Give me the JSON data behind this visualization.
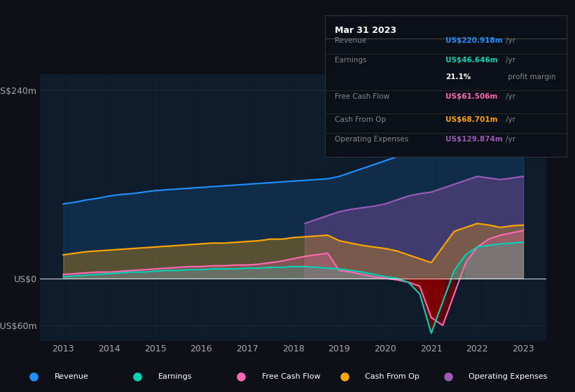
{
  "bg_color": "#0d1117",
  "plot_bg_color": "#0d1b2a",
  "grid_color": "#1e2d3d",
  "title_box": {
    "date": "Mar 31 2023",
    "rows": [
      {
        "label": "Revenue",
        "value": "US$220.918m",
        "unit": "/yr",
        "color": "#1e90ff"
      },
      {
        "label": "Earnings",
        "value": "US$46.646m",
        "unit": "/yr",
        "color": "#00d4b4"
      },
      {
        "label": "",
        "value": "21.1%",
        "unit": " profit margin",
        "color": "#ffffff"
      },
      {
        "label": "Free Cash Flow",
        "value": "US$61.506m",
        "unit": "/yr",
        "color": "#ff69b4"
      },
      {
        "label": "Cash From Op",
        "value": "US$68.701m",
        "unit": "/yr",
        "color": "#ffa500"
      },
      {
        "label": "Operating Expenses",
        "value": "US$129.874m",
        "unit": "/yr",
        "color": "#9b59b6"
      }
    ]
  },
  "years": [
    2013,
    2013.25,
    2013.5,
    2013.75,
    2014,
    2014.25,
    2014.5,
    2014.75,
    2015,
    2015.25,
    2015.5,
    2015.75,
    2016,
    2016.25,
    2016.5,
    2016.75,
    2017,
    2017.25,
    2017.5,
    2017.75,
    2018,
    2018.25,
    2018.5,
    2018.75,
    2019,
    2019.25,
    2019.5,
    2019.75,
    2020,
    2020.25,
    2020.5,
    2020.75,
    2021,
    2021.25,
    2021.5,
    2021.75,
    2022,
    2022.25,
    2022.5,
    2022.75,
    2023
  ],
  "revenue": [
    95,
    97,
    100,
    102,
    105,
    107,
    108,
    110,
    112,
    113,
    114,
    115,
    116,
    117,
    118,
    119,
    120,
    121,
    122,
    123,
    124,
    125,
    126,
    127,
    130,
    135,
    140,
    145,
    150,
    155,
    160,
    165,
    185,
    200,
    215,
    220,
    210,
    205,
    200,
    210,
    220
  ],
  "earnings": [
    2,
    3,
    4,
    5,
    6,
    7,
    8,
    8,
    9,
    10,
    10,
    11,
    11,
    12,
    12,
    12,
    13,
    13,
    14,
    14,
    15,
    15,
    14,
    13,
    12,
    10,
    8,
    5,
    2,
    0,
    -5,
    -20,
    -70,
    -30,
    10,
    30,
    40,
    42,
    44,
    45,
    46
  ],
  "free_cash_flow": [
    5,
    6,
    7,
    8,
    8,
    9,
    10,
    11,
    12,
    13,
    14,
    15,
    15,
    16,
    16,
    17,
    17,
    18,
    20,
    22,
    25,
    28,
    30,
    32,
    10,
    8,
    5,
    2,
    0,
    -2,
    -5,
    -10,
    -50,
    -60,
    -20,
    20,
    40,
    50,
    55,
    58,
    61
  ],
  "cash_from_op": [
    30,
    32,
    34,
    35,
    36,
    37,
    38,
    39,
    40,
    41,
    42,
    43,
    44,
    45,
    45,
    46,
    47,
    48,
    50,
    50,
    52,
    53,
    54,
    55,
    48,
    45,
    42,
    40,
    38,
    35,
    30,
    25,
    20,
    40,
    60,
    65,
    70,
    68,
    65,
    67,
    68
  ],
  "operating_expenses": [
    0,
    0,
    0,
    0,
    0,
    0,
    0,
    0,
    0,
    0,
    0,
    0,
    0,
    0,
    0,
    0,
    0,
    0,
    0,
    0,
    0,
    70,
    75,
    80,
    85,
    88,
    90,
    92,
    95,
    100,
    105,
    108,
    110,
    115,
    120,
    125,
    130,
    128,
    126,
    128,
    130
  ],
  "yticks": [
    -60,
    0,
    240
  ],
  "ylabels": [
    "-US$60m",
    "US$0",
    "US$240m"
  ],
  "ylim": [
    -80,
    260
  ],
  "xlim": [
    2012.5,
    2023.5
  ],
  "legend": [
    {
      "label": "Revenue",
      "color": "#1e90ff"
    },
    {
      "label": "Earnings",
      "color": "#00d4b4"
    },
    {
      "label": "Free Cash Flow",
      "color": "#ff69b4"
    },
    {
      "label": "Cash From Op",
      "color": "#ffa500"
    },
    {
      "label": "Operating Expenses",
      "color": "#9b59b6"
    }
  ]
}
